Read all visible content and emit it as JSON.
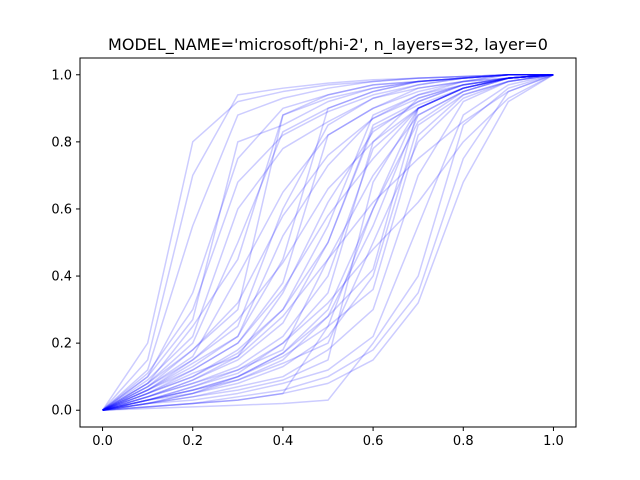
{
  "chart_data": {
    "type": "line",
    "title": "MODEL_NAME='microsoft/phi-2', n_layers=32, layer=0",
    "xlabel": "",
    "ylabel": "",
    "xlim": [
      -0.05,
      1.05
    ],
    "ylim": [
      -0.05,
      1.05
    ],
    "x_ticks": [
      0.0,
      0.2,
      0.4,
      0.6,
      0.8,
      1.0
    ],
    "y_ticks": [
      0.0,
      0.2,
      0.4,
      0.6,
      0.8,
      1.0
    ],
    "x_tick_labels": [
      "0.0",
      "0.2",
      "0.4",
      "0.6",
      "0.8",
      "1.0"
    ],
    "y_tick_labels": [
      "0.0",
      "0.2",
      "0.4",
      "0.6",
      "0.8",
      "1.0"
    ],
    "grid": false,
    "legend": "none",
    "line_color": "#0000ff",
    "line_alpha": 0.2,
    "x": [
      0.0,
      0.1,
      0.2,
      0.3,
      0.4,
      0.5,
      0.6,
      0.7,
      0.8,
      0.9,
      1.0
    ],
    "series": [
      {
        "values": [
          0.0,
          0.2,
          0.8,
          0.92,
          0.95,
          0.97,
          0.98,
          0.99,
          0.995,
          1.0,
          1.0
        ]
      },
      {
        "values": [
          0.0,
          0.15,
          0.7,
          0.94,
          0.96,
          0.975,
          0.985,
          0.99,
          0.995,
          1.0,
          1.0
        ]
      },
      {
        "values": [
          0.0,
          0.12,
          0.55,
          0.88,
          0.93,
          0.96,
          0.98,
          0.99,
          0.995,
          1.0,
          1.0
        ]
      },
      {
        "values": [
          0.0,
          0.1,
          0.35,
          0.75,
          0.9,
          0.94,
          0.97,
          0.98,
          0.99,
          1.0,
          1.0
        ]
      },
      {
        "values": [
          0.0,
          0.1,
          0.27,
          0.8,
          0.85,
          0.92,
          0.96,
          0.98,
          0.99,
          1.0,
          1.0
        ]
      },
      {
        "values": [
          0.0,
          0.08,
          0.25,
          0.45,
          0.88,
          0.93,
          0.96,
          0.98,
          0.99,
          1.0,
          1.0
        ]
      },
      {
        "values": [
          0.0,
          0.08,
          0.2,
          0.5,
          0.83,
          0.9,
          0.95,
          0.98,
          0.99,
          1.0,
          1.0
        ]
      },
      {
        "values": [
          0.0,
          0.07,
          0.18,
          0.3,
          0.88,
          0.94,
          0.97,
          0.98,
          0.99,
          1.0,
          1.0
        ]
      },
      {
        "values": [
          0.0,
          0.06,
          0.15,
          0.25,
          0.6,
          0.85,
          0.93,
          0.97,
          0.99,
          1.0,
          1.0
        ]
      },
      {
        "values": [
          0.0,
          0.06,
          0.13,
          0.22,
          0.45,
          0.9,
          0.95,
          0.98,
          0.99,
          1.0,
          1.0
        ]
      },
      {
        "values": [
          0.0,
          0.05,
          0.12,
          0.2,
          0.38,
          0.82,
          0.9,
          0.96,
          0.98,
          1.0,
          1.0
        ]
      },
      {
        "values": [
          0.0,
          0.05,
          0.1,
          0.17,
          0.3,
          0.55,
          0.88,
          0.94,
          0.98,
          1.0,
          1.0
        ]
      },
      {
        "values": [
          0.0,
          0.04,
          0.09,
          0.15,
          0.26,
          0.5,
          0.85,
          0.92,
          0.97,
          0.99,
          1.0
        ]
      },
      {
        "values": [
          0.0,
          0.04,
          0.08,
          0.13,
          0.22,
          0.4,
          0.78,
          0.9,
          0.96,
          0.99,
          1.0
        ]
      },
      {
        "values": [
          0.0,
          0.03,
          0.07,
          0.11,
          0.2,
          0.35,
          0.8,
          0.93,
          0.97,
          0.99,
          1.0
        ]
      },
      {
        "values": [
          0.0,
          0.03,
          0.06,
          0.1,
          0.17,
          0.3,
          0.6,
          0.9,
          0.96,
          0.99,
          1.0
        ]
      },
      {
        "values": [
          0.0,
          0.03,
          0.05,
          0.09,
          0.15,
          0.28,
          0.55,
          0.88,
          0.95,
          0.99,
          1.0
        ]
      },
      {
        "values": [
          0.0,
          0.02,
          0.05,
          0.08,
          0.13,
          0.22,
          0.4,
          0.85,
          0.94,
          0.98,
          1.0
        ]
      },
      {
        "values": [
          0.0,
          0.02,
          0.04,
          0.07,
          0.1,
          0.18,
          0.3,
          0.7,
          0.92,
          0.98,
          1.0
        ]
      },
      {
        "values": [
          0.0,
          0.02,
          0.03,
          0.05,
          0.08,
          0.12,
          0.22,
          0.55,
          0.88,
          0.97,
          1.0
        ]
      },
      {
        "values": [
          0.0,
          0.01,
          0.02,
          0.04,
          0.06,
          0.1,
          0.18,
          0.35,
          0.75,
          0.95,
          1.0
        ]
      },
      {
        "values": [
          0.0,
          0.01,
          0.02,
          0.03,
          0.05,
          0.08,
          0.15,
          0.32,
          0.68,
          0.92,
          1.0
        ]
      },
      {
        "values": [
          0.0,
          0.005,
          0.01,
          0.015,
          0.02,
          0.03,
          0.2,
          0.4,
          0.85,
          0.96,
          1.0
        ]
      },
      {
        "values": [
          0.0,
          0.01,
          0.02,
          0.03,
          0.05,
          0.25,
          0.6,
          0.86,
          0.95,
          0.99,
          1.0
        ]
      },
      {
        "values": [
          0.0,
          0.02,
          0.04,
          0.06,
          0.09,
          0.15,
          0.68,
          0.9,
          0.96,
          0.99,
          1.0
        ]
      },
      {
        "values": [
          0.0,
          0.03,
          0.06,
          0.09,
          0.14,
          0.2,
          0.5,
          0.8,
          0.93,
          0.98,
          1.0
        ]
      },
      {
        "values": [
          0.0,
          0.04,
          0.08,
          0.12,
          0.18,
          0.45,
          0.7,
          0.88,
          0.95,
          0.99,
          1.0
        ]
      },
      {
        "values": [
          0.0,
          0.05,
          0.11,
          0.16,
          0.35,
          0.62,
          0.83,
          0.92,
          0.97,
          0.99,
          1.0
        ]
      },
      {
        "values": [
          0.0,
          0.06,
          0.14,
          0.22,
          0.52,
          0.73,
          0.87,
          0.94,
          0.97,
          0.99,
          1.0
        ]
      },
      {
        "values": [
          0.0,
          0.07,
          0.16,
          0.4,
          0.65,
          0.82,
          0.9,
          0.95,
          0.98,
          0.99,
          1.0
        ]
      },
      {
        "values": [
          0.0,
          0.09,
          0.22,
          0.6,
          0.78,
          0.86,
          0.93,
          0.96,
          0.98,
          0.99,
          1.0
        ]
      },
      {
        "values": [
          0.0,
          0.11,
          0.3,
          0.68,
          0.82,
          0.89,
          0.94,
          0.97,
          0.99,
          1.0,
          1.0
        ]
      },
      {
        "values": [
          0.0,
          0.04,
          0.09,
          0.16,
          0.28,
          0.45,
          0.62,
          0.75,
          0.86,
          0.95,
          1.0
        ]
      },
      {
        "values": [
          0.0,
          0.03,
          0.07,
          0.12,
          0.2,
          0.32,
          0.48,
          0.62,
          0.8,
          0.93,
          1.0
        ]
      },
      {
        "values": [
          0.0,
          0.05,
          0.1,
          0.18,
          0.3,
          0.5,
          0.84,
          0.91,
          0.96,
          0.99,
          1.0
        ]
      },
      {
        "values": [
          0.0,
          0.06,
          0.12,
          0.2,
          0.36,
          0.58,
          0.75,
          0.9,
          0.96,
          0.99,
          1.0
        ]
      },
      {
        "values": [
          0.0,
          0.02,
          0.05,
          0.1,
          0.17,
          0.28,
          0.42,
          0.9,
          0.96,
          0.99,
          1.0
        ]
      },
      {
        "values": [
          0.0,
          0.03,
          0.06,
          0.1,
          0.16,
          0.25,
          0.36,
          0.82,
          0.94,
          0.98,
          1.0
        ]
      },
      {
        "values": [
          0.0,
          0.07,
          0.15,
          0.27,
          0.44,
          0.66,
          0.8,
          0.9,
          0.96,
          0.99,
          1.0
        ]
      },
      {
        "values": [
          0.0,
          0.08,
          0.18,
          0.32,
          0.58,
          0.76,
          0.87,
          0.93,
          0.97,
          0.99,
          1.0
        ]
      }
    ]
  }
}
